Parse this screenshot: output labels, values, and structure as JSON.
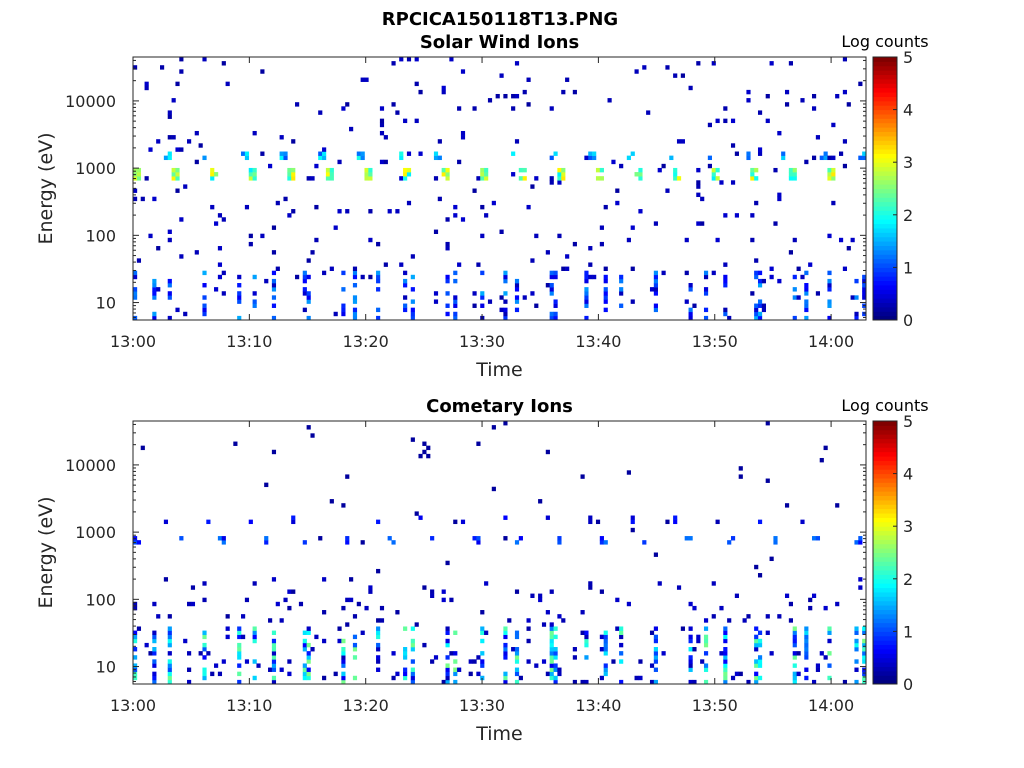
{
  "figure": {
    "suptitle": "RPCICA150118T13.PNG"
  },
  "colorbar": {
    "label": "Log counts",
    "ticks": [
      0,
      1,
      2,
      3,
      4,
      5
    ],
    "range": [
      0,
      5
    ],
    "colormap": "jet"
  },
  "chart_data": [
    {
      "type": "heatmap",
      "title": "Solar Wind Ions",
      "xlabel": "Time",
      "ylabel": "Energy (eV)",
      "x_tick_labels": [
        "13:00",
        "13:10",
        "13:20",
        "13:30",
        "13:40",
        "13:50",
        "14:00"
      ],
      "x_tick_minutes": [
        0,
        10,
        20,
        30,
        40,
        50,
        60
      ],
      "xlim_minutes": [
        0,
        63
      ],
      "y_scale": "log",
      "y_tick_labels": [
        "10",
        "100",
        "1000",
        "10000"
      ],
      "y_tick_values": [
        10,
        100,
        1000,
        10000
      ],
      "ylim": [
        5.5,
        45000
      ],
      "colorbar_label": "Log counts",
      "color_range": [
        0,
        5
      ],
      "features": [
        {
          "label": "proton band",
          "energy_eV": 800,
          "log_counts_max": 3.2
        },
        {
          "label": "alpha band",
          "energy_eV": 1600,
          "log_counts_max": 2.0
        },
        {
          "label": "low-energy bursts",
          "energy_range_eV": [
            6,
            30
          ],
          "log_counts_max": 2.5
        }
      ]
    },
    {
      "type": "heatmap",
      "title": "Cometary Ions",
      "xlabel": "Time",
      "ylabel": "Energy (eV)",
      "x_tick_labels": [
        "13:00",
        "13:10",
        "13:20",
        "13:30",
        "13:40",
        "13:50",
        "14:00"
      ],
      "x_tick_minutes": [
        0,
        10,
        20,
        30,
        40,
        50,
        60
      ],
      "xlim_minutes": [
        0,
        63
      ],
      "y_scale": "log",
      "y_tick_labels": [
        "10",
        "100",
        "1000",
        "10000"
      ],
      "y_tick_values": [
        10,
        100,
        1000,
        10000
      ],
      "ylim": [
        5.5,
        45000
      ],
      "colorbar_label": "Log counts",
      "color_range": [
        0,
        5
      ],
      "features": [
        {
          "label": "proton band",
          "energy_eV": 750,
          "log_counts_max": 1.5
        },
        {
          "label": "alpha band",
          "energy_eV": 1600,
          "log_counts_max": 0.8
        },
        {
          "label": "low-energy bursts",
          "energy_range_eV": [
            6,
            40
          ],
          "log_counts_max": 3.0
        }
      ]
    }
  ]
}
